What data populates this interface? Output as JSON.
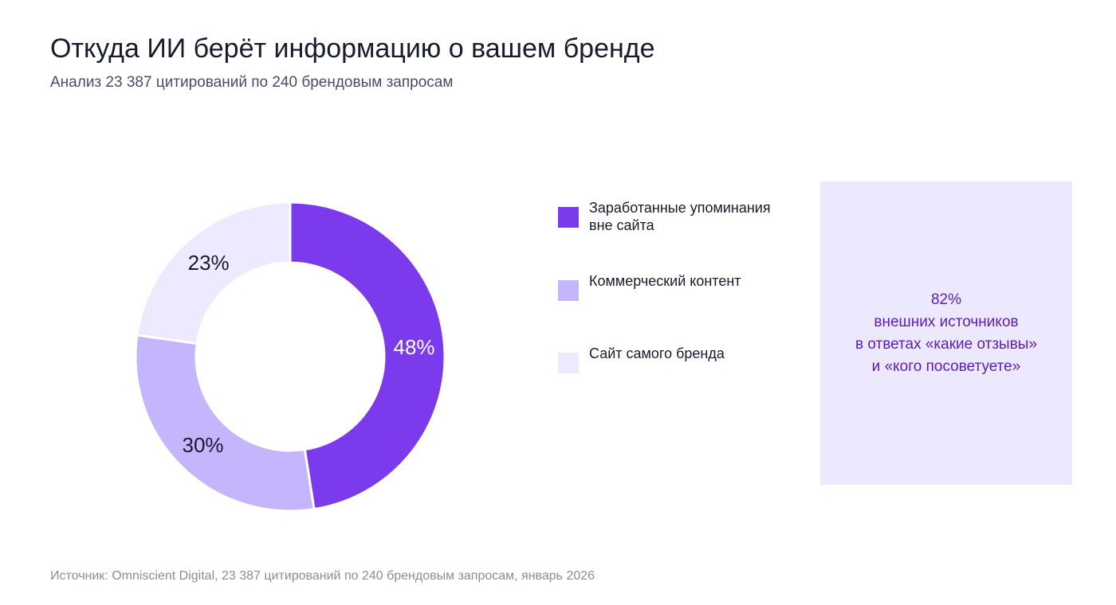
{
  "title": "Откуда ИИ берёт информацию о вашем бренде",
  "subtitle": "Анализ 23 387 цитирований по 240 брендовым запросам",
  "chart_data": {
    "type": "pie",
    "title": "Откуда ИИ берёт информацию о вашем бренде",
    "subtitle": "Анализ 23 387 цитирований по 240 брендовым запросам",
    "categories": [
      "Заработанные упоминания вне сайта",
      "Коммерческий контент",
      "Сайт самого бренда"
    ],
    "values": [
      48,
      30,
      23
    ],
    "data_labels": [
      "48%",
      "30%",
      "23%"
    ],
    "colors": [
      "#7c3aed",
      "#c4b5fd",
      "#ede9fe"
    ],
    "legend_labels": [
      [
        "Заработанные упоминания",
        "вне сайта"
      ],
      [
        "Коммерческий контент"
      ],
      [
        "Сайт самого бренда"
      ]
    ],
    "legend_position": "right",
    "donut": true
  },
  "callout": {
    "lines": [
      "82%",
      "внешних источников",
      "в ответах «какие отзывы»",
      "и «кого посоветуете»"
    ]
  },
  "footer": "Источник: Omniscient Digital, 23 387 цитирований по 240 брендовым запросам, январь 2026"
}
